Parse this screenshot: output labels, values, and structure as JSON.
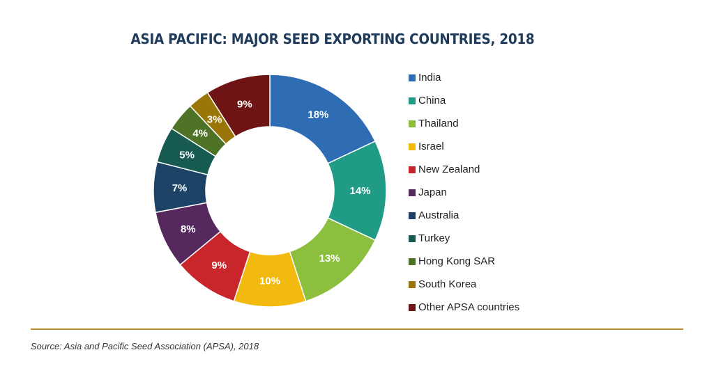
{
  "chart_data": {
    "type": "pie",
    "title": "ASIA PACIFIC: MAJOR SEED EXPORTING COUNTRIES, 2018",
    "donut": true,
    "categories": [
      "India",
      "China",
      "Thailand",
      "Israel",
      "New Zealand",
      "Japan",
      "Australia",
      "Turkey",
      "Hong Kong SAR",
      "South Korea",
      "Other APSA countries"
    ],
    "values": [
      18,
      14,
      13,
      10,
      9,
      8,
      7,
      5,
      4,
      3,
      9
    ],
    "value_labels": [
      "18%",
      "14%",
      "13%",
      "10%",
      "9%",
      "8%",
      "7%",
      "5%",
      "4%",
      "3%",
      "9%"
    ],
    "colors": [
      "#2e6db4",
      "#1f9b86",
      "#8dbf3f",
      "#f2b90f",
      "#c8262b",
      "#55295e",
      "#1c4266",
      "#165a52",
      "#4e7327",
      "#9a7609",
      "#6e1414"
    ],
    "legend_placement": "right"
  },
  "source": "Source: Asia and Pacific Seed Association (APSA), 2018"
}
